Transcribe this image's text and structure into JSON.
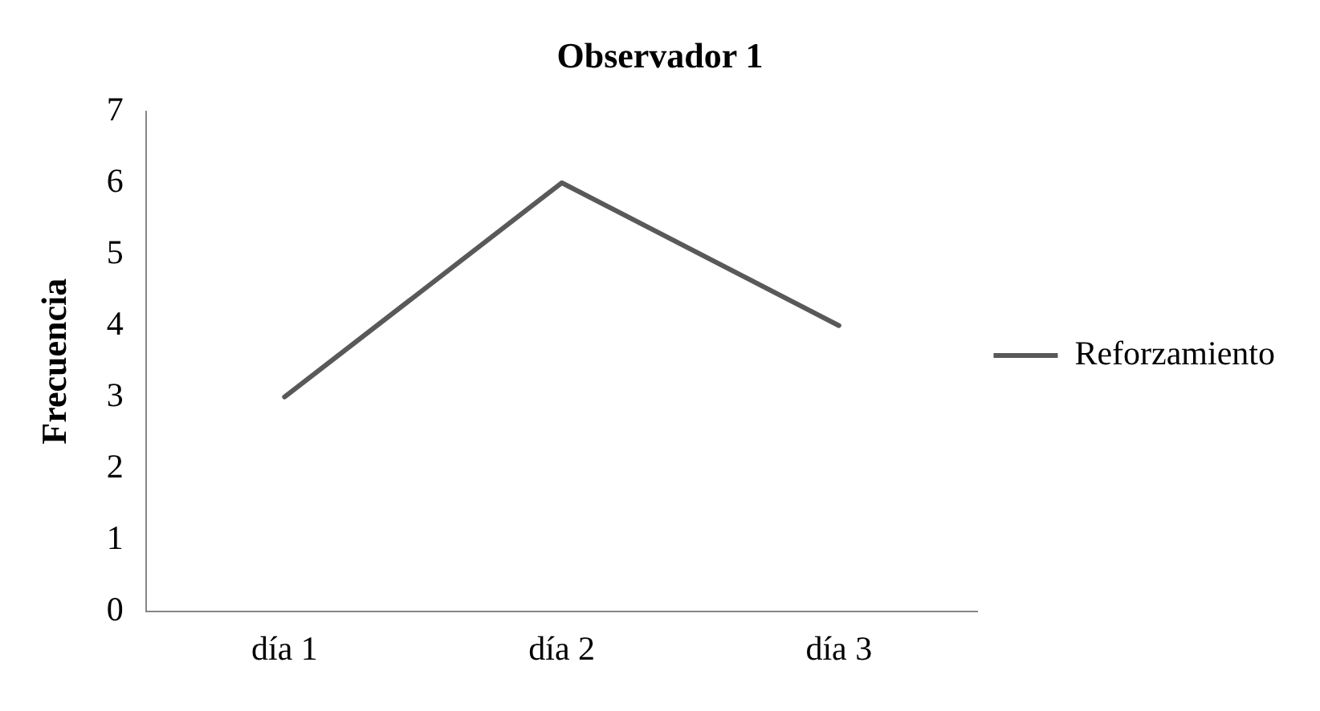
{
  "chart_data": {
    "type": "line",
    "title": "Observador 1",
    "ylabel": "Frecuencia",
    "categories": [
      "día 1",
      "día 2",
      "día 3"
    ],
    "series": [
      {
        "name": "Reforzamiento",
        "color": "#595959",
        "values": [
          3,
          6,
          4
        ]
      }
    ],
    "ylim": [
      0,
      7
    ],
    "yticks": [
      0,
      1,
      2,
      3,
      4,
      5,
      6,
      7
    ],
    "grid": false,
    "legend": "right",
    "marker": "none",
    "line_style": "solid"
  }
}
